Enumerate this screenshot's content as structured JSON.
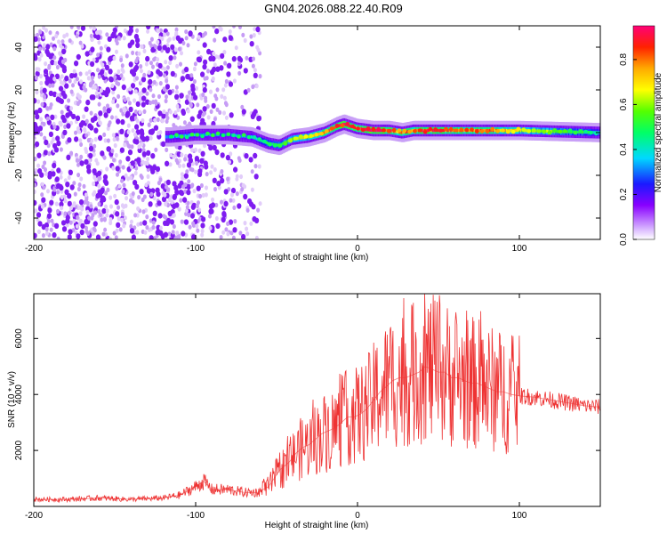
{
  "title": "GN04.2026.088.22.40.R09",
  "chart_data": [
    {
      "type": "heatmap",
      "title": "GN04.2026.088.22.40.R09",
      "xlabel": "Height of straight line (km)",
      "ylabel": "Frequency (Hz)",
      "xlim": [
        -200,
        150
      ],
      "ylim": [
        -50,
        50
      ],
      "xticks": [
        -200,
        -100,
        0,
        100
      ],
      "yticks": [
        -40,
        -20,
        0,
        20,
        40
      ],
      "colorbar": {
        "label": "Normalized spectral amplitude",
        "range": [
          0,
          0.95
        ],
        "ticks": [
          0.0,
          0.2,
          0.4,
          0.6,
          0.8
        ]
      },
      "ridge": {
        "x": [
          -115,
          -100,
          -80,
          -65,
          -55,
          -48,
          -40,
          -30,
          -20,
          -12,
          -8,
          0,
          10,
          20,
          28,
          35,
          50,
          80,
          100,
          150
        ],
        "y": [
          -2,
          -1,
          -1,
          -2,
          -5,
          -6,
          -3,
          -2,
          0,
          3,
          4,
          2,
          1,
          1,
          0,
          1,
          1,
          1,
          1,
          0
        ],
        "amplitude": [
          0.35,
          0.35,
          0.3,
          0.35,
          0.5,
          0.55,
          0.65,
          0.7,
          0.8,
          0.9,
          0.9,
          0.9,
          0.95,
          0.9,
          0.75,
          0.9,
          0.9,
          0.85,
          0.7,
          0.45
        ]
      },
      "noise_region_x": [
        -200,
        -60
      ]
    },
    {
      "type": "line",
      "xlabel": "Height of straight line (km)",
      "ylabel": "SNR (10 * v/v)",
      "xlim": [
        -200,
        150
      ],
      "ylim": [
        0,
        7600
      ],
      "xticks": [
        -200,
        -100,
        0,
        100
      ],
      "yticks": [
        2000,
        4000,
        6000
      ],
      "series": [
        {
          "name": "SNR",
          "color": "#ee3333",
          "x": [
            -200,
            -180,
            -160,
            -140,
            -120,
            -110,
            -100,
            -95,
            -90,
            -80,
            -70,
            -62,
            -55,
            -48,
            -42,
            -38,
            -34,
            -30,
            -26,
            -22,
            -18,
            -14,
            -10,
            -6,
            -2,
            2,
            6,
            10,
            14,
            18,
            22,
            26,
            30,
            34,
            38,
            42,
            46,
            50,
            54,
            58,
            62,
            66,
            70,
            74,
            78,
            82,
            86,
            90,
            95,
            100,
            110,
            120,
            130,
            140,
            150
          ],
          "y": [
            250,
            250,
            300,
            250,
            300,
            400,
            700,
            900,
            600,
            600,
            500,
            500,
            700,
            1300,
            1600,
            1900,
            2100,
            2200,
            2400,
            2600,
            2700,
            2800,
            3000,
            3200,
            3200,
            3300,
            3500,
            3800,
            4100,
            4300,
            4500,
            4600,
            4600,
            4700,
            4800,
            5000,
            4900,
            4800,
            4800,
            4600,
            4600,
            4500,
            4400,
            4400,
            4300,
            4200,
            4100,
            4100,
            4000,
            3950,
            3900,
            3800,
            3700,
            3600,
            3550
          ]
        }
      ]
    }
  ]
}
